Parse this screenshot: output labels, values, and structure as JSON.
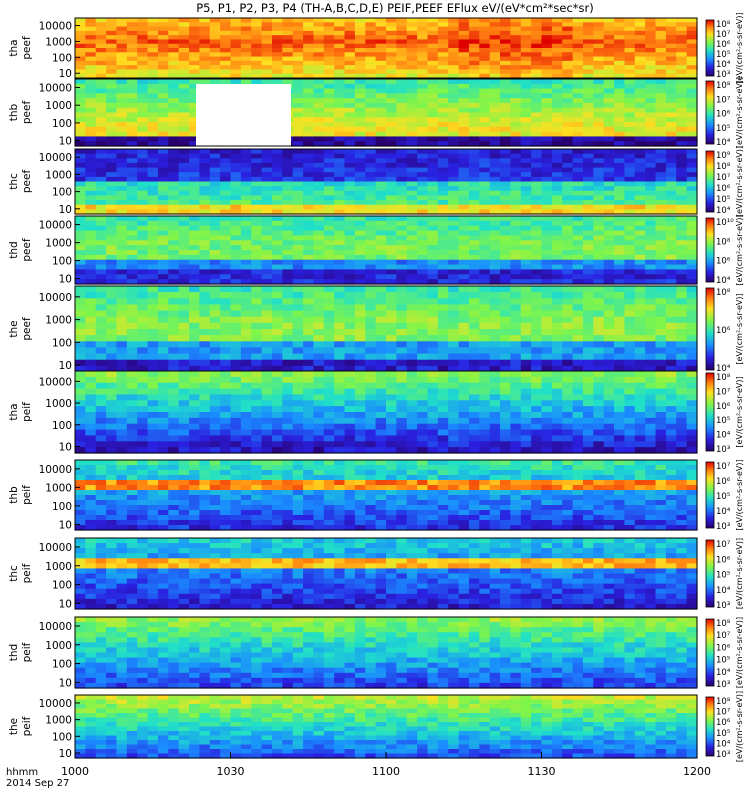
{
  "chart_data": {
    "type": "heatmap",
    "title": "P5, P1, P2, P3, P4 (TH-A,B,C,D,E) PEIF,PEEF EFlux eV/(eV*cm²*sec*sr)",
    "xlabel": "hhmm",
    "date_label": "2014 Sep 27",
    "x_ticks": [
      "1000",
      "1030",
      "1100",
      "1130",
      "1200"
    ],
    "xlim": [
      "10:00",
      "12:00"
    ],
    "y_ticks": [
      "10",
      "100",
      "1000",
      "10000"
    ],
    "ylim": [
      5,
      30000
    ],
    "y_scale": "log",
    "colorbar_label": "[eV/(cm²-s-sr-eV)]",
    "panels": [
      {
        "name": "tha peef",
        "ylabel_probe": "tha",
        "ylabel_type": "peef",
        "colorbar_ticks": [
          "10³",
          "10⁴",
          "10⁵",
          "10⁶",
          "10⁷",
          "10⁸"
        ]
      },
      {
        "name": "thb peef",
        "ylabel_probe": "thb",
        "ylabel_type": "peef",
        "colorbar_ticks": [
          "10⁴",
          "10⁵",
          "10⁶",
          "10⁷",
          "10⁸"
        ]
      },
      {
        "name": "thc peef",
        "ylabel_probe": "thc",
        "ylabel_type": "peef",
        "colorbar_ticks": [
          "10⁴",
          "10⁵",
          "10⁶",
          "10⁷",
          "10⁸",
          "10⁹"
        ]
      },
      {
        "name": "thd peef",
        "ylabel_probe": "thd",
        "ylabel_type": "peef",
        "colorbar_ticks": [
          "10⁴",
          "10⁶",
          "10⁸",
          "10¹⁰"
        ]
      },
      {
        "name": "the peef",
        "ylabel_probe": "the",
        "ylabel_type": "peef",
        "colorbar_ticks": [
          "10⁴",
          "10⁶",
          "10⁸"
        ]
      },
      {
        "name": "tha peif",
        "ylabel_probe": "tha",
        "ylabel_type": "peif",
        "colorbar_ticks": [
          "10³",
          "10⁴",
          "10⁵",
          "10⁶",
          "10⁷",
          "10⁸"
        ]
      },
      {
        "name": "thb peif",
        "ylabel_probe": "thb",
        "ylabel_type": "peif",
        "colorbar_ticks": [
          "10³",
          "10⁴",
          "10⁵",
          "10⁶",
          "10⁷"
        ]
      },
      {
        "name": "thc peif",
        "ylabel_probe": "thc",
        "ylabel_type": "peif",
        "colorbar_ticks": [
          "10³",
          "10⁴",
          "10⁵",
          "10⁶",
          "10⁷"
        ]
      },
      {
        "name": "thd peif",
        "ylabel_probe": "thd",
        "ylabel_type": "peif",
        "colorbar_ticks": [
          "10³",
          "10⁴",
          "10⁵",
          "10⁶",
          "10⁷",
          "10⁸"
        ]
      },
      {
        "name": "the peif",
        "ylabel_probe": "the",
        "ylabel_type": "peif",
        "colorbar_ticks": [
          "10³",
          "10⁴",
          "10⁵",
          "10⁶",
          "10⁷",
          "10⁸"
        ]
      }
    ]
  }
}
